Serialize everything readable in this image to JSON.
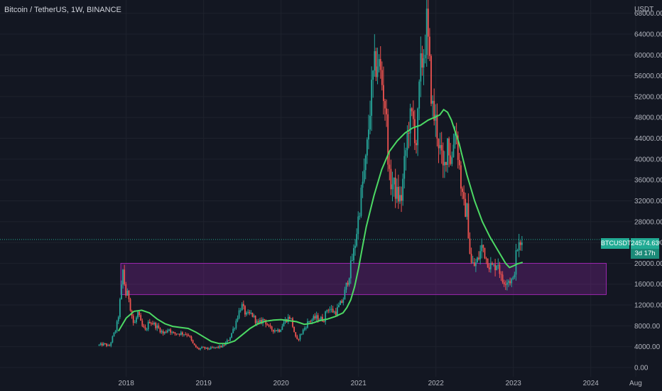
{
  "header": {
    "symbol_title": "Bitcoin / TetherUS, 1W, BINANCE"
  },
  "colors": {
    "background": "#131722",
    "grid": "#1e222d",
    "up": "#26a69a",
    "down": "#ef5350",
    "moving_average": "#4cd964",
    "zone_fill": "rgba(156,39,176,0.28)",
    "zone_stroke": "#9c27b0",
    "price_line": "#22ab94"
  },
  "price_tag": {
    "symbol": "BTCUSDT",
    "value": "24574.63",
    "countdown": "3d 17h"
  },
  "chart_data": {
    "type": "candlestick",
    "title": "Bitcoin / TetherUS, 1W, BINANCE",
    "ylabel": "USDT",
    "ylim": [
      0,
      70000
    ],
    "y_ticks": [
      "0.00",
      "4000.00",
      "8000.00",
      "12000.00",
      "16000.00",
      "20000.00",
      "24000.00",
      "28000.00",
      "32000.00",
      "36000.00",
      "40000.00",
      "44000.00",
      "48000.00",
      "52000.00",
      "56000.00",
      "60000.00",
      "64000.00",
      "68000.00"
    ],
    "y_tick_values": [
      0,
      4000,
      8000,
      12000,
      16000,
      20000,
      24000,
      28000,
      32000,
      36000,
      40000,
      44000,
      48000,
      52000,
      56000,
      60000,
      64000,
      68000
    ],
    "x_ticks": [
      "2018",
      "2019",
      "2020",
      "2021",
      "2022",
      "2023",
      "2024",
      "Aug"
    ],
    "x_tick_values": [
      2018.0,
      2019.0,
      2020.0,
      2021.0,
      2022.0,
      2023.0,
      2024.0,
      2024.58
    ],
    "xlim": [
      2016.37,
      2024.92
    ],
    "last_price": 24574.63,
    "grid": true,
    "zone": {
      "x_start": 2017.93,
      "x_end": 2024.2,
      "y_low": 14000,
      "y_high": 20000
    },
    "price_path": [
      [
        2017.65,
        4300
      ],
      [
        2017.72,
        4500
      ],
      [
        2017.78,
        4000
      ],
      [
        2017.83,
        6000
      ],
      [
        2017.87,
        7500
      ],
      [
        2017.9,
        10000
      ],
      [
        2017.94,
        15500
      ],
      [
        2017.96,
        19000
      ],
      [
        2017.99,
        14000
      ],
      [
        2018.03,
        14000
      ],
      [
        2018.06,
        11000
      ],
      [
        2018.1,
        8000
      ],
      [
        2018.15,
        10500
      ],
      [
        2018.2,
        8000
      ],
      [
        2018.25,
        7000
      ],
      [
        2018.3,
        9000
      ],
      [
        2018.36,
        8300
      ],
      [
        2018.42,
        7500
      ],
      [
        2018.48,
        6500
      ],
      [
        2018.55,
        7500
      ],
      [
        2018.6,
        6500
      ],
      [
        2018.7,
        6600
      ],
      [
        2018.8,
        6400
      ],
      [
        2018.87,
        4300
      ],
      [
        2018.93,
        3500
      ],
      [
        2018.98,
        3800
      ],
      [
        2019.05,
        3600
      ],
      [
        2019.15,
        3800
      ],
      [
        2019.25,
        4100
      ],
      [
        2019.33,
        5500
      ],
      [
        2019.4,
        8000
      ],
      [
        2019.45,
        10500
      ],
      [
        2019.49,
        12000
      ],
      [
        2019.55,
        10000
      ],
      [
        2019.62,
        10300
      ],
      [
        2019.7,
        8300
      ],
      [
        2019.78,
        9300
      ],
      [
        2019.85,
        7500
      ],
      [
        2019.92,
        7200
      ],
      [
        2019.98,
        7200
      ],
      [
        2020.05,
        9000
      ],
      [
        2020.12,
        9800
      ],
      [
        2020.2,
        5000
      ],
      [
        2020.28,
        7000
      ],
      [
        2020.35,
        8800
      ],
      [
        2020.45,
        9600
      ],
      [
        2020.55,
        9200
      ],
      [
        2020.6,
        11500
      ],
      [
        2020.7,
        10500
      ],
      [
        2020.8,
        13000
      ],
      [
        2020.88,
        18000
      ],
      [
        2020.95,
        23000
      ],
      [
        2021.0,
        29000
      ],
      [
        2021.05,
        35000
      ],
      [
        2021.1,
        40000
      ],
      [
        2021.15,
        50000
      ],
      [
        2021.2,
        57000
      ],
      [
        2021.25,
        59000
      ],
      [
        2021.3,
        55000
      ],
      [
        2021.35,
        50000
      ],
      [
        2021.4,
        36000
      ],
      [
        2021.45,
        35000
      ],
      [
        2021.5,
        33000
      ],
      [
        2021.55,
        32000
      ],
      [
        2021.6,
        40000
      ],
      [
        2021.65,
        47000
      ],
      [
        2021.7,
        48000
      ],
      [
        2021.75,
        43000
      ],
      [
        2021.8,
        57000
      ],
      [
        2021.85,
        61000
      ],
      [
        2021.88,
        66000
      ],
      [
        2021.92,
        57000
      ],
      [
        2021.96,
        49000
      ],
      [
        2022.0,
        47000
      ],
      [
        2022.05,
        42000
      ],
      [
        2022.1,
        37000
      ],
      [
        2022.15,
        44000
      ],
      [
        2022.2,
        39000
      ],
      [
        2022.25,
        47000
      ],
      [
        2022.3,
        39000
      ],
      [
        2022.35,
        31000
      ],
      [
        2022.4,
        30000
      ],
      [
        2022.45,
        20000
      ],
      [
        2022.5,
        19500
      ],
      [
        2022.55,
        21000
      ],
      [
        2022.6,
        23500
      ],
      [
        2022.65,
        21000
      ],
      [
        2022.7,
        19500
      ],
      [
        2022.75,
        19200
      ],
      [
        2022.8,
        20500
      ],
      [
        2022.85,
        16500
      ],
      [
        2022.9,
        16800
      ],
      [
        2022.95,
        16800
      ],
      [
        2023.0,
        16600
      ],
      [
        2023.03,
        21000
      ],
      [
        2023.06,
        23500
      ],
      [
        2023.09,
        23000
      ],
      [
        2023.12,
        24574.63
      ]
    ],
    "series": [
      {
        "name": "",
        "type": "line",
        "points": [
          [
            2017.9,
            7000
          ],
          [
            2018.0,
            9500
          ],
          [
            2018.1,
            10800
          ],
          [
            2018.2,
            11000
          ],
          [
            2018.3,
            10500
          ],
          [
            2018.4,
            9300
          ],
          [
            2018.5,
            8400
          ],
          [
            2018.6,
            7900
          ],
          [
            2018.7,
            7700
          ],
          [
            2018.8,
            7500
          ],
          [
            2018.9,
            6800
          ],
          [
            2019.0,
            5900
          ],
          [
            2019.1,
            5000
          ],
          [
            2019.2,
            4600
          ],
          [
            2019.3,
            4600
          ],
          [
            2019.4,
            5100
          ],
          [
            2019.5,
            6300
          ],
          [
            2019.6,
            7500
          ],
          [
            2019.7,
            8400
          ],
          [
            2019.8,
            8900
          ],
          [
            2019.9,
            9100
          ],
          [
            2020.0,
            9200
          ],
          [
            2020.1,
            9000
          ],
          [
            2020.2,
            8800
          ],
          [
            2020.3,
            8300
          ],
          [
            2020.4,
            8500
          ],
          [
            2020.5,
            9000
          ],
          [
            2020.6,
            9300
          ],
          [
            2020.7,
            9800
          ],
          [
            2020.8,
            10500
          ],
          [
            2020.85,
            11500
          ],
          [
            2020.9,
            13000
          ],
          [
            2020.95,
            15500
          ],
          [
            2021.0,
            19000
          ],
          [
            2021.05,
            23000
          ],
          [
            2021.1,
            27000
          ],
          [
            2021.2,
            33000
          ],
          [
            2021.3,
            38000
          ],
          [
            2021.4,
            41500
          ],
          [
            2021.5,
            43500
          ],
          [
            2021.6,
            45000
          ],
          [
            2021.7,
            46000
          ],
          [
            2021.8,
            46500
          ],
          [
            2021.9,
            47500
          ],
          [
            2021.98,
            48000
          ],
          [
            2022.05,
            48500
          ],
          [
            2022.1,
            49500
          ],
          [
            2022.15,
            49000
          ],
          [
            2022.2,
            47500
          ],
          [
            2022.3,
            43000
          ],
          [
            2022.4,
            37000
          ],
          [
            2022.5,
            32000
          ],
          [
            2022.6,
            28000
          ],
          [
            2022.7,
            25000
          ],
          [
            2022.8,
            22500
          ],
          [
            2022.9,
            20000
          ],
          [
            2022.95,
            19200
          ],
          [
            2023.0,
            19500
          ],
          [
            2023.05,
            19900
          ],
          [
            2023.1,
            20100
          ],
          [
            2023.12,
            20200
          ]
        ]
      }
    ]
  }
}
